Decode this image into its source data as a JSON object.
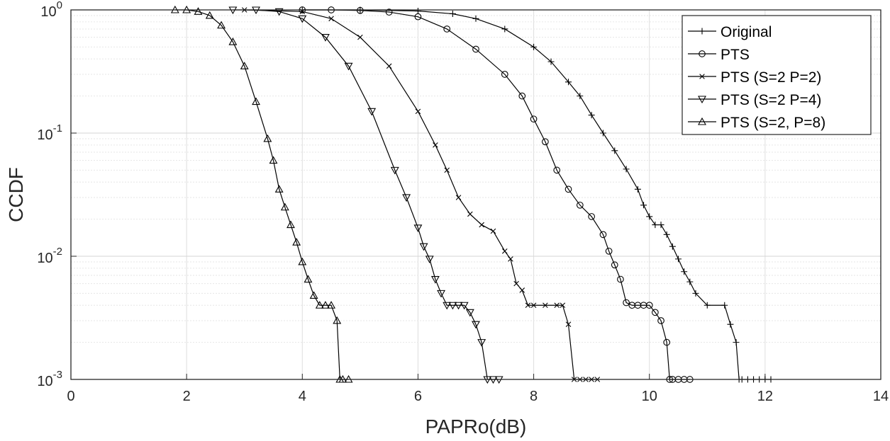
{
  "chart_data": {
    "type": "line",
    "xlabel": "PAPRo(dB)",
    "ylabel": "CCDF",
    "xlim": [
      0,
      14
    ],
    "ylim": [
      0.001,
      1
    ],
    "yscale": "log",
    "grid": true,
    "legend_location": "top-right",
    "x_ticks": [
      "0",
      "2",
      "4",
      "6",
      "8",
      "10",
      "12",
      "14"
    ],
    "y_ticks": [
      {
        "value": 1,
        "base": "10",
        "exp": "0"
      },
      {
        "value": 0.1,
        "base": "10",
        "exp": "-1"
      },
      {
        "value": 0.01,
        "base": "10",
        "exp": "-2"
      },
      {
        "value": 0.001,
        "base": "10",
        "exp": "-3"
      }
    ],
    "series": [
      {
        "name": "Original",
        "marker": "plus",
        "x": [
          4.0,
          5.0,
          6.0,
          6.6,
          7.0,
          7.5,
          8.0,
          8.3,
          8.6,
          8.8,
          9.0,
          9.2,
          9.4,
          9.6,
          9.8,
          9.9,
          10.0,
          10.1,
          10.2,
          10.3,
          10.4,
          10.5,
          10.6,
          10.7,
          10.8,
          11.0,
          11.3,
          11.4,
          11.5,
          11.55,
          11.6,
          11.7,
          11.8,
          11.9,
          12.0,
          12.1
        ],
        "y": [
          1.0,
          1.0,
          0.98,
          0.93,
          0.85,
          0.7,
          0.5,
          0.38,
          0.26,
          0.2,
          0.14,
          0.1,
          0.072,
          0.051,
          0.035,
          0.026,
          0.021,
          0.018,
          0.018,
          0.015,
          0.012,
          0.0095,
          0.0075,
          0.0062,
          0.005,
          0.004,
          0.004,
          0.0028,
          0.002,
          0.001,
          0.001,
          0.001,
          0.001,
          0.001,
          0.001,
          0.001
        ]
      },
      {
        "name": "PTS",
        "marker": "circle",
        "x": [
          4.0,
          4.5,
          5.0,
          5.5,
          6.0,
          6.5,
          7.0,
          7.5,
          7.8,
          8.0,
          8.2,
          8.4,
          8.6,
          8.8,
          9.0,
          9.2,
          9.3,
          9.4,
          9.5,
          9.6,
          9.7,
          9.8,
          9.9,
          10.0,
          10.1,
          10.2,
          10.3,
          10.35,
          10.4,
          10.5,
          10.6,
          10.7
        ],
        "y": [
          1.0,
          1.0,
          0.99,
          0.96,
          0.88,
          0.7,
          0.48,
          0.3,
          0.2,
          0.13,
          0.085,
          0.05,
          0.035,
          0.026,
          0.021,
          0.015,
          0.011,
          0.0085,
          0.0065,
          0.0042,
          0.004,
          0.004,
          0.004,
          0.004,
          0.0035,
          0.003,
          0.002,
          0.001,
          0.001,
          0.001,
          0.001,
          0.001
        ]
      },
      {
        "name": "PTS (S=2 P=2)",
        "marker": "x",
        "x": [
          3.0,
          4.0,
          4.5,
          5.0,
          5.5,
          6.0,
          6.3,
          6.5,
          6.7,
          6.9,
          7.1,
          7.3,
          7.5,
          7.6,
          7.7,
          7.8,
          7.9,
          8.0,
          8.2,
          8.4,
          8.5,
          8.6,
          8.7,
          8.8,
          8.9,
          9.0,
          9.1
        ],
        "y": [
          1.0,
          0.97,
          0.85,
          0.6,
          0.35,
          0.15,
          0.08,
          0.05,
          0.03,
          0.022,
          0.018,
          0.016,
          0.011,
          0.0095,
          0.006,
          0.0053,
          0.004,
          0.004,
          0.004,
          0.004,
          0.004,
          0.0028,
          0.001,
          0.001,
          0.001,
          0.001,
          0.001
        ]
      },
      {
        "name": "PTS (S=2 P=4)",
        "marker": "triangle-down",
        "x": [
          2.8,
          3.2,
          3.6,
          4.0,
          4.4,
          4.8,
          5.2,
          5.6,
          5.8,
          6.0,
          6.1,
          6.2,
          6.3,
          6.4,
          6.5,
          6.6,
          6.7,
          6.8,
          6.9,
          7.0,
          7.1,
          7.2,
          7.3,
          7.4
        ],
        "y": [
          1.0,
          1.0,
          0.97,
          0.85,
          0.6,
          0.35,
          0.15,
          0.05,
          0.03,
          0.017,
          0.012,
          0.0095,
          0.0065,
          0.005,
          0.004,
          0.004,
          0.004,
          0.004,
          0.0035,
          0.0028,
          0.002,
          0.001,
          0.001,
          0.001
        ]
      },
      {
        "name": "PTS (S=2, P=8)",
        "marker": "triangle-up",
        "x": [
          1.8,
          2.0,
          2.2,
          2.4,
          2.6,
          2.8,
          3.0,
          3.2,
          3.4,
          3.5,
          3.6,
          3.7,
          3.8,
          3.9,
          4.0,
          4.1,
          4.2,
          4.3,
          4.4,
          4.5,
          4.6,
          4.65,
          4.7,
          4.8
        ],
        "y": [
          1.0,
          1.0,
          0.97,
          0.9,
          0.75,
          0.55,
          0.35,
          0.18,
          0.09,
          0.06,
          0.035,
          0.025,
          0.018,
          0.013,
          0.009,
          0.0065,
          0.0048,
          0.004,
          0.004,
          0.004,
          0.003,
          0.001,
          0.001,
          0.001
        ]
      }
    ]
  }
}
